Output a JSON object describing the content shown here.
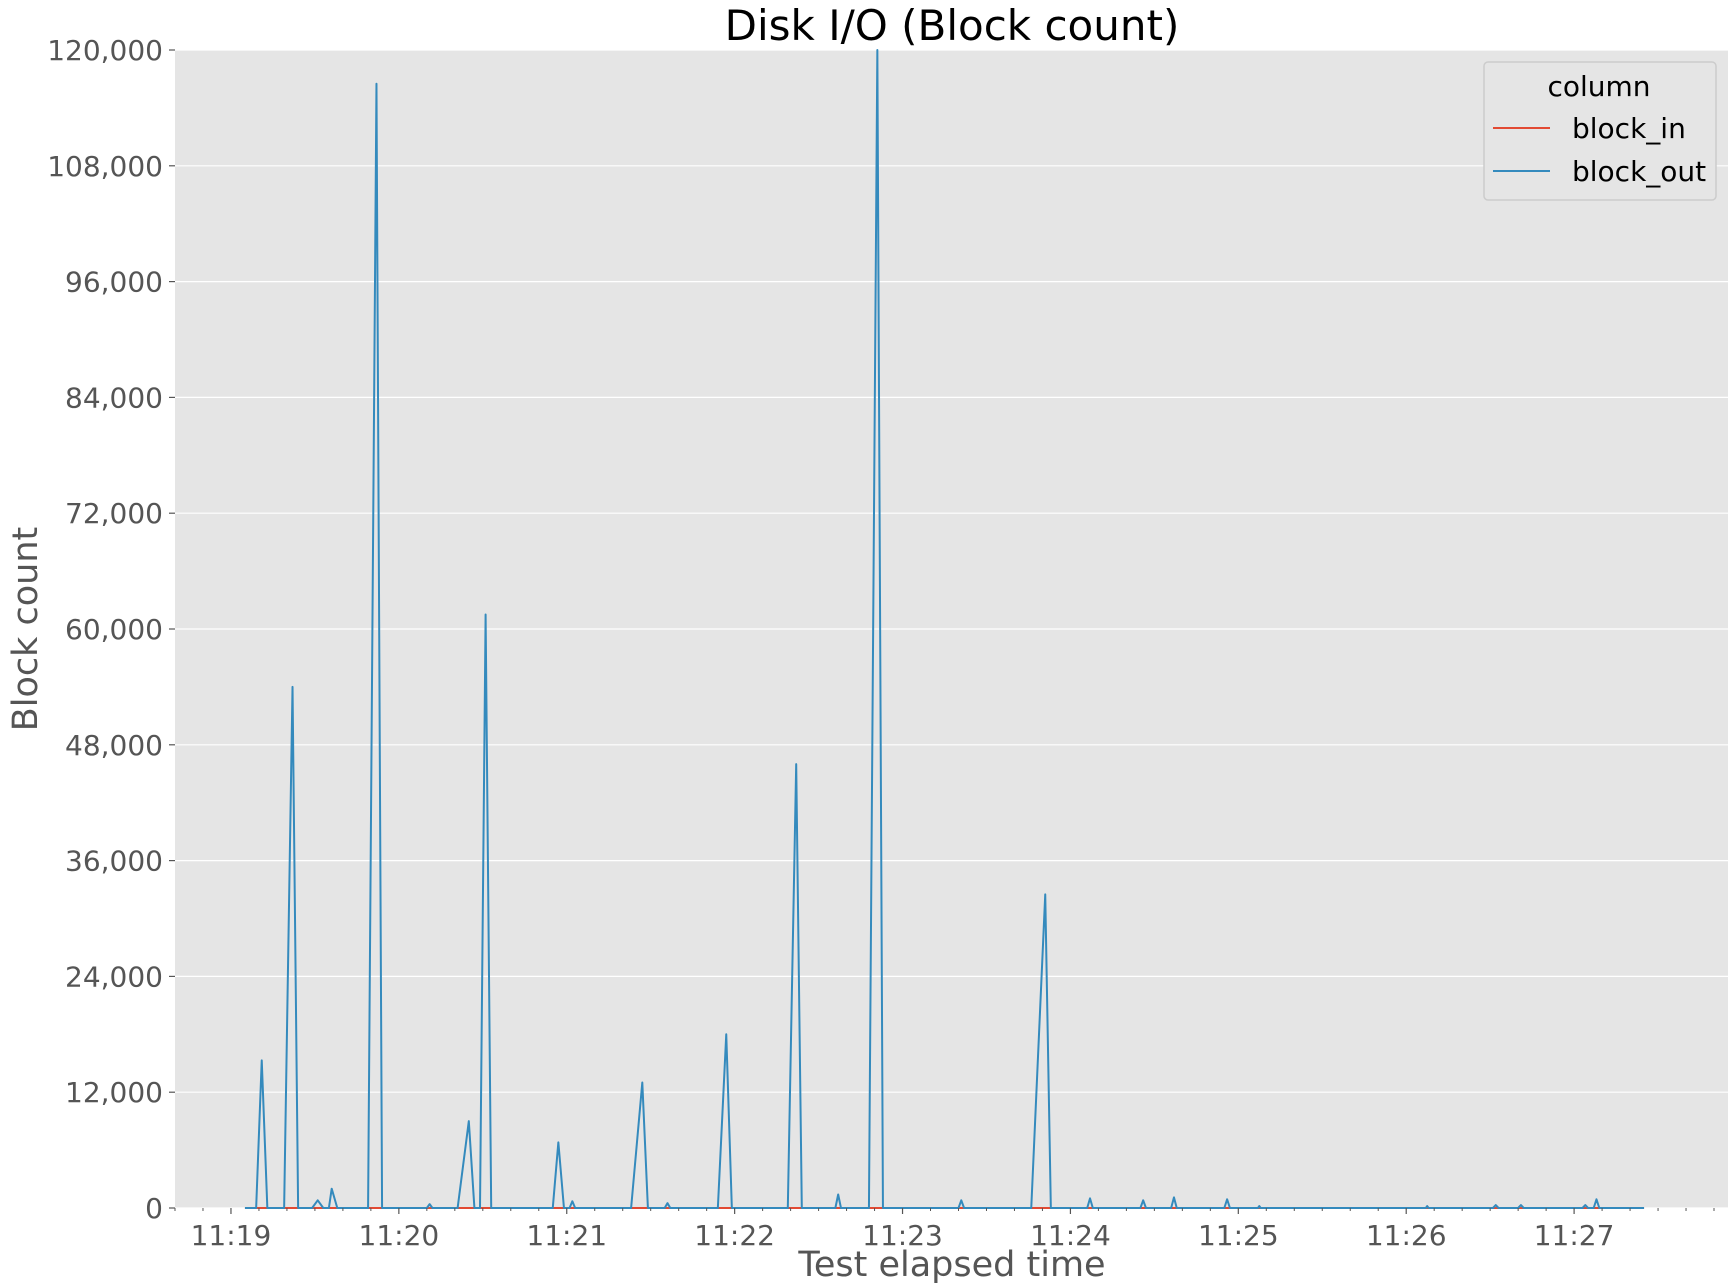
{
  "chart_data": {
    "type": "line",
    "title": "Disk I/O (Block count)",
    "xlabel": "Test elapsed time",
    "ylabel": "Block count",
    "ylim": [
      0,
      120000
    ],
    "yticks": [
      0,
      12000,
      24000,
      36000,
      48000,
      60000,
      72000,
      84000,
      96000,
      108000,
      120000
    ],
    "ytick_labels": [
      "0",
      "12,000",
      "24,000",
      "36,000",
      "48,000",
      "60,000",
      "72,000",
      "84,000",
      "96,000",
      "108,000",
      "120,000"
    ],
    "xlim": [
      "11:18:40",
      "11:27:55"
    ],
    "xticks": [
      "11:19",
      "11:20",
      "11:21",
      "11:22",
      "11:23",
      "11:24",
      "11:25",
      "11:26",
      "11:27"
    ],
    "grid": true,
    "legend": {
      "title": "column",
      "placement": "top-right"
    },
    "series": [
      {
        "name": "block_in",
        "color": "#E24A33",
        "points": [
          [
            "11:19:05",
            0
          ],
          [
            "11:27:25",
            0
          ]
        ]
      },
      {
        "name": "block_out",
        "color": "#348ABD",
        "points": [
          [
            "11:19:05",
            0
          ],
          [
            "11:19:09",
            0
          ],
          [
            "11:19:11",
            15300
          ],
          [
            "11:19:13",
            0
          ],
          [
            "11:19:19",
            0
          ],
          [
            "11:19:22",
            54000
          ],
          [
            "11:19:24",
            0
          ],
          [
            "11:19:29",
            0
          ],
          [
            "11:19:31",
            800
          ],
          [
            "11:19:33",
            0
          ],
          [
            "11:19:35",
            0
          ],
          [
            "11:19:36",
            2000
          ],
          [
            "11:19:38",
            0
          ],
          [
            "11:19:49",
            0
          ],
          [
            "11:19:52",
            116500
          ],
          [
            "11:19:54",
            0
          ],
          [
            "11:20:10",
            0
          ],
          [
            "11:20:11",
            400
          ],
          [
            "11:20:12",
            0
          ],
          [
            "11:20:21",
            0
          ],
          [
            "11:20:25",
            9000
          ],
          [
            "11:20:27",
            0
          ],
          [
            "11:20:29",
            0
          ],
          [
            "11:20:31",
            61500
          ],
          [
            "11:20:33",
            0
          ],
          [
            "11:20:55",
            0
          ],
          [
            "11:20:57",
            6800
          ],
          [
            "11:20:59",
            0
          ],
          [
            "11:21:01",
            0
          ],
          [
            "11:21:02",
            700
          ],
          [
            "11:21:03",
            0
          ],
          [
            "11:21:23",
            0
          ],
          [
            "11:21:27",
            13000
          ],
          [
            "11:21:29",
            0
          ],
          [
            "11:21:35",
            0
          ],
          [
            "11:21:36",
            500
          ],
          [
            "11:21:37",
            0
          ],
          [
            "11:21:54",
            0
          ],
          [
            "11:21:57",
            18000
          ],
          [
            "11:21:59",
            0
          ],
          [
            "11:22:19",
            0
          ],
          [
            "11:22:22",
            46000
          ],
          [
            "11:22:24",
            0
          ],
          [
            "11:22:36",
            0
          ],
          [
            "11:22:37",
            1400
          ],
          [
            "11:22:38",
            0
          ],
          [
            "11:22:48",
            0
          ],
          [
            "11:22:51",
            120000
          ],
          [
            "11:22:53",
            0
          ],
          [
            "11:23:20",
            0
          ],
          [
            "11:23:21",
            800
          ],
          [
            "11:23:22",
            0
          ],
          [
            "11:23:46",
            0
          ],
          [
            "11:23:51",
            32500
          ],
          [
            "11:23:53",
            0
          ],
          [
            "11:24:06",
            0
          ],
          [
            "11:24:07",
            1000
          ],
          [
            "11:24:08",
            0
          ],
          [
            "11:24:25",
            0
          ],
          [
            "11:24:26",
            800
          ],
          [
            "11:24:27",
            0
          ],
          [
            "11:24:36",
            0
          ],
          [
            "11:24:37",
            1100
          ],
          [
            "11:24:38",
            0
          ],
          [
            "11:24:55",
            0
          ],
          [
            "11:24:56",
            900
          ],
          [
            "11:24:57",
            0
          ],
          [
            "11:25:07",
            0
          ],
          [
            "11:25:07.5",
            200
          ],
          [
            "11:25:08",
            0
          ],
          [
            "11:26:07",
            0
          ],
          [
            "11:26:07.5",
            200
          ],
          [
            "11:26:08",
            0
          ],
          [
            "11:26:31",
            0
          ],
          [
            "11:26:32",
            300
          ],
          [
            "11:26:33",
            0
          ],
          [
            "11:26:40",
            0
          ],
          [
            "11:26:41",
            300
          ],
          [
            "11:26:42",
            0
          ],
          [
            "11:27:03",
            0
          ],
          [
            "11:27:04",
            300
          ],
          [
            "11:27:05",
            0
          ],
          [
            "11:27:07",
            0
          ],
          [
            "11:27:08",
            900
          ],
          [
            "11:27:09",
            0
          ],
          [
            "11:27:25",
            0
          ]
        ]
      }
    ]
  }
}
